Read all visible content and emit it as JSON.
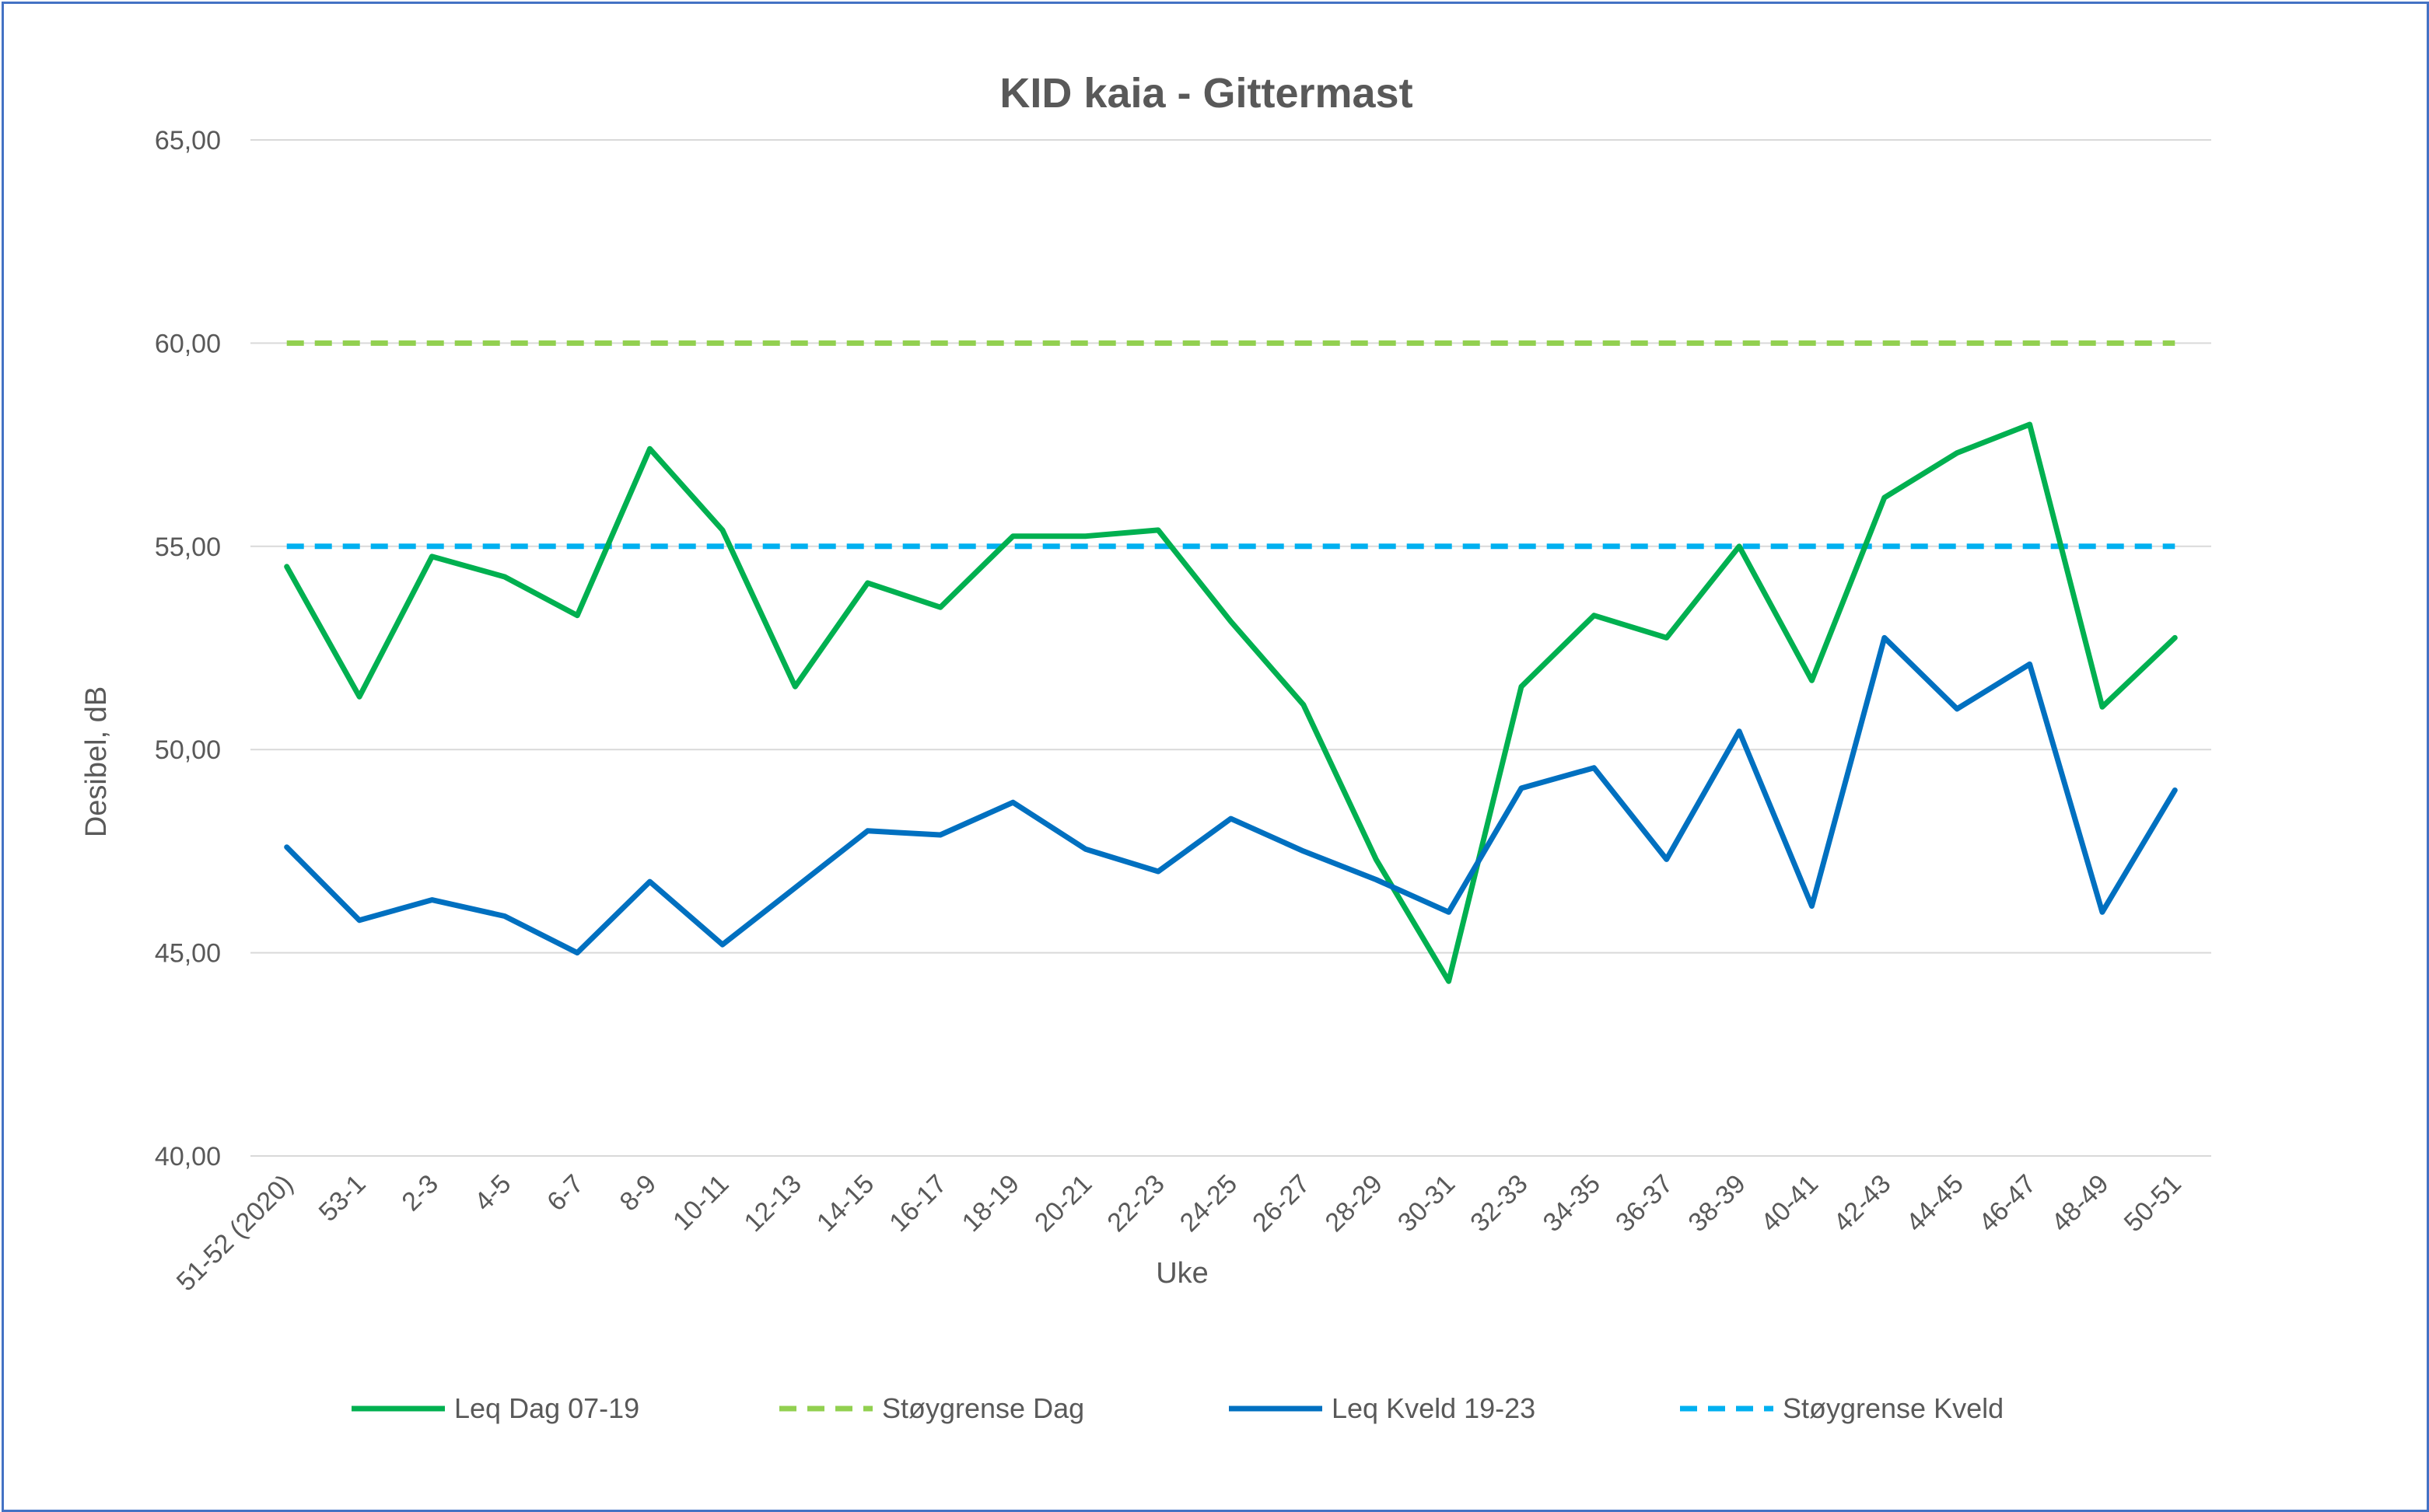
{
  "chart_data": {
    "type": "line",
    "title": "KID kaia - Gittermast",
    "xlabel": "Uke",
    "ylabel": "Desibel, dB",
    "ylim": [
      40,
      65
    ],
    "y_ticks": [
      "40,00",
      "45,00",
      "50,00",
      "55,00",
      "60,00",
      "65,00"
    ],
    "y_tick_values": [
      40,
      45,
      50,
      55,
      60,
      65
    ],
    "grid": true,
    "legend_position": "bottom",
    "categories": [
      "51-52 (2020)",
      "53-1",
      "2-3",
      "4-5",
      "6-7",
      "8-9",
      "10-11",
      "12-13",
      "14-15",
      "16-17",
      "18-19",
      "20-21",
      "22-23",
      "24-25",
      "26-27",
      "28-29",
      "30-31",
      "32-33",
      "34-35",
      "36-37",
      "38-39",
      "40-41",
      "42-43",
      "44-45",
      "46-47",
      "48-49",
      "50-51"
    ],
    "series": [
      {
        "name": "Leq Dag 07-19",
        "color": "#00b050",
        "style": "solid",
        "values": [
          54.5,
          51.3,
          54.75,
          54.25,
          53.3,
          57.4,
          55.4,
          51.55,
          54.1,
          53.5,
          55.25,
          55.25,
          55.4,
          53.15,
          51.1,
          47.3,
          44.3,
          51.55,
          53.3,
          52.75,
          55.0,
          51.7,
          56.2,
          57.3,
          58.0,
          51.05,
          52.75
        ]
      },
      {
        "name": "Støygrense Dag",
        "color": "#92d050",
        "style": "dashed",
        "values": [
          60,
          60,
          60,
          60,
          60,
          60,
          60,
          60,
          60,
          60,
          60,
          60,
          60,
          60,
          60,
          60,
          60,
          60,
          60,
          60,
          60,
          60,
          60,
          60,
          60,
          60,
          60
        ]
      },
      {
        "name": "Leq Kveld 19-23",
        "color": "#0070c0",
        "style": "solid",
        "values": [
          47.6,
          45.8,
          46.3,
          45.9,
          45.0,
          46.75,
          45.2,
          46.6,
          48.0,
          47.9,
          48.7,
          47.55,
          47.0,
          48.3,
          47.5,
          46.8,
          46.0,
          49.05,
          49.55,
          47.3,
          50.45,
          46.15,
          52.75,
          51.0,
          52.1,
          46.0,
          49.0
        ]
      },
      {
        "name": "Støygrense Kveld",
        "color": "#00b0f0",
        "style": "dashed",
        "values": [
          55,
          55,
          55,
          55,
          55,
          55,
          55,
          55,
          55,
          55,
          55,
          55,
          55,
          55,
          55,
          55,
          55,
          55,
          55,
          55,
          55,
          55,
          55,
          55,
          55,
          55,
          55
        ]
      }
    ]
  }
}
